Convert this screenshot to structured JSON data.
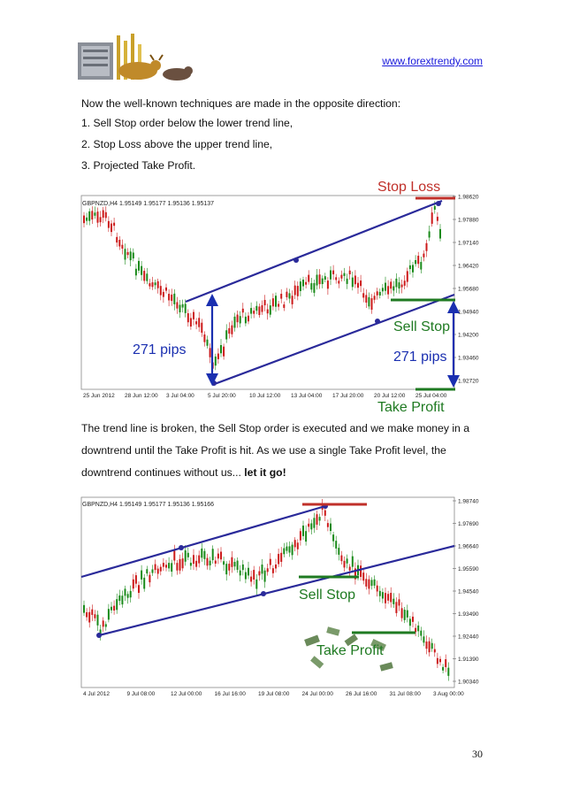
{
  "header": {
    "url": "www.forextrendy.com"
  },
  "intro": "Now the well-known techniques are made in the opposite direction:",
  "steps": [
    "1. Sell Stop order below the lower trend line,",
    "2. Stop Loss above the upper trend line,",
    "3. Projected Take Profit."
  ],
  "chart1": {
    "info": "GBPNZD,H4  1.95149 1.95177 1.95136 1.95137",
    "annotations": {
      "stop_loss": "Stop Loss",
      "sell_stop": "Sell Stop",
      "take_profit": "Take Profit",
      "pips_left": "271 pips",
      "pips_right": "271 pips"
    },
    "y_ticks": [
      "1.98620",
      "1.97880",
      "1.97140",
      "1.96420",
      "1.95680",
      "1.94940",
      "1.94200",
      "1.93460",
      "1.92720"
    ],
    "x_ticks": [
      "25 Jun 2012",
      "28 Jun 12:00",
      "3 Jul 04:00",
      "5 Jul 20:00",
      "10 Jul 12:00",
      "13 Jul 04:00",
      "17 Jul 20:00",
      "20 Jul 12:00",
      "25 Jul 04:00"
    ]
  },
  "para2_text": "The trend line is broken, the Sell Stop order is executed and we make money in a downtrend until the Take Profit is hit. As we use a single Take Profit level, the downtrend continues without us... ",
  "para2_bold": "let it go!",
  "chart2": {
    "info": "GBPNZD,H4  1.95149 1.95177 1.95136 1.95166",
    "annotations": {
      "sell_stop": "Sell Stop",
      "take_profit": "Take Profit"
    },
    "y_ticks": [
      "1.98740",
      "1.97690",
      "1.96640",
      "1.95590",
      "1.94540",
      "1.93490",
      "1.92440",
      "1.91390",
      "1.90340"
    ],
    "x_ticks": [
      "4 Jul 2012",
      "9 Jul 08:00",
      "12 Jul 00:00",
      "16 Jul 16:00",
      "19 Jul 08:00",
      "24 Jul 00:00",
      "26 Jul 16:00",
      "31 Jul 08:00",
      "3 Aug 00:00"
    ]
  },
  "page_number": "30",
  "colors": {
    "trend_line": "#2a2a9a",
    "arrow": "#1a2fb0",
    "stop_loss": "#c0302a",
    "green": "#1f7a22",
    "bull": "#1a8a1a",
    "bear": "#cc1a1a"
  }
}
